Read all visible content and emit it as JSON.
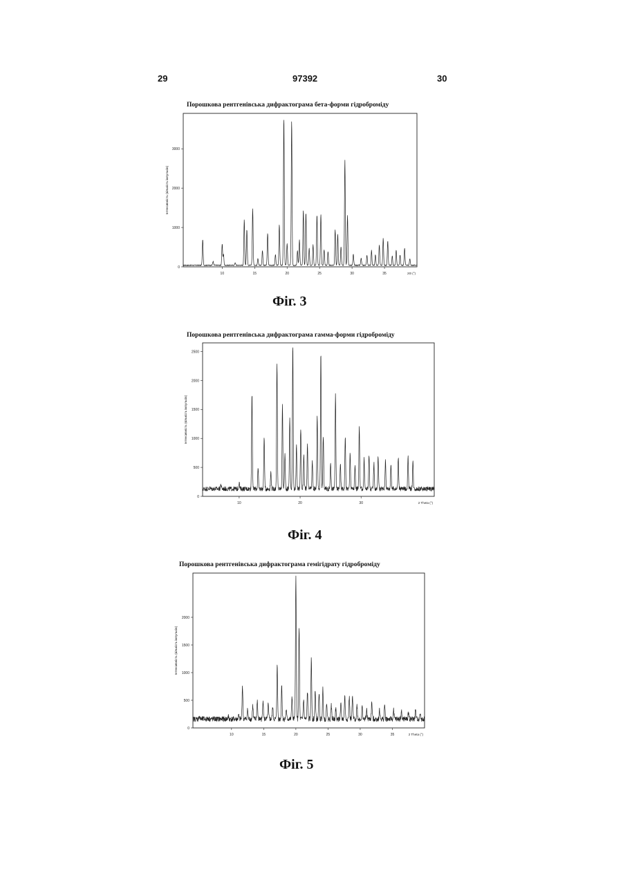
{
  "header": {
    "page_left": "29",
    "page_center": "97392",
    "page_right": "30"
  },
  "colors": {
    "ink": "#222222",
    "paper": "#ffffff"
  },
  "figures": [
    {
      "caption": "Фіг. 3",
      "chart_data": {
        "type": "line",
        "title": "Порошкова рентгенівська дифрактограма бета-форми гідроброміду",
        "ylabel": "Інтенсивність (кількість імпульсів)",
        "xlabel": "2Θ (°)",
        "xlim": [
          4,
          40
        ],
        "ylim": [
          0,
          3900
        ],
        "x_ticks": [
          10,
          15,
          20,
          25,
          30,
          35
        ],
        "y_ticks": [
          0,
          1000,
          2000,
          3000
        ],
        "grid": false,
        "baseline": 40,
        "peaks": [
          [
            7.0,
            700
          ],
          [
            8.6,
            140
          ],
          [
            10.0,
            580
          ],
          [
            10.2,
            320
          ],
          [
            12.0,
            110
          ],
          [
            13.4,
            1200
          ],
          [
            13.8,
            950
          ],
          [
            14.7,
            1480
          ],
          [
            15.5,
            220
          ],
          [
            16.2,
            420
          ],
          [
            17.0,
            860
          ],
          [
            18.2,
            320
          ],
          [
            18.8,
            1080
          ],
          [
            19.5,
            3800
          ],
          [
            20.0,
            600
          ],
          [
            20.7,
            3730
          ],
          [
            21.6,
            420
          ],
          [
            21.9,
            680
          ],
          [
            22.5,
            1450
          ],
          [
            22.9,
            1380
          ],
          [
            23.4,
            470
          ],
          [
            24.0,
            560
          ],
          [
            24.6,
            1320
          ],
          [
            25.2,
            1340
          ],
          [
            25.7,
            440
          ],
          [
            26.3,
            380
          ],
          [
            27.4,
            950
          ],
          [
            27.8,
            820
          ],
          [
            28.3,
            520
          ],
          [
            28.9,
            2720
          ],
          [
            29.3,
            1300
          ],
          [
            30.2,
            320
          ],
          [
            31.4,
            220
          ],
          [
            32.3,
            300
          ],
          [
            33.0,
            420
          ],
          [
            33.6,
            300
          ],
          [
            34.2,
            560
          ],
          [
            34.8,
            720
          ],
          [
            35.5,
            660
          ],
          [
            36.2,
            280
          ],
          [
            36.8,
            420
          ],
          [
            37.4,
            300
          ],
          [
            38.1,
            480
          ],
          [
            38.9,
            210
          ]
        ]
      }
    },
    {
      "caption": "Фіг. 4",
      "chart_data": {
        "type": "line",
        "title": "Порошкова рентгенівська дифрактограма гамма-форми гідроброміду",
        "ylabel": "Інтенсивність (кількість імпульсів)",
        "xlabel": "2 Theta (°)",
        "xlim": [
          4,
          42
        ],
        "ylim": [
          0,
          2650
        ],
        "x_ticks": [
          10,
          20,
          30
        ],
        "y_ticks": [
          0,
          500,
          1000,
          1500,
          2000,
          2500
        ],
        "grid": false,
        "baseline": 130,
        "peaks": [
          [
            5.2,
            140
          ],
          [
            7.0,
            210
          ],
          [
            8.1,
            130
          ],
          [
            10.0,
            240
          ],
          [
            12.1,
            1800
          ],
          [
            13.1,
            480
          ],
          [
            14.1,
            1050
          ],
          [
            15.2,
            420
          ],
          [
            16.2,
            2320
          ],
          [
            17.1,
            1580
          ],
          [
            17.5,
            740
          ],
          [
            18.3,
            1380
          ],
          [
            18.8,
            2620
          ],
          [
            19.4,
            860
          ],
          [
            20.1,
            1180
          ],
          [
            20.6,
            720
          ],
          [
            21.2,
            880
          ],
          [
            22.0,
            600
          ],
          [
            22.8,
            1420
          ],
          [
            23.4,
            2490
          ],
          [
            23.8,
            1060
          ],
          [
            25.0,
            600
          ],
          [
            25.8,
            1740
          ],
          [
            26.6,
            560
          ],
          [
            27.4,
            1040
          ],
          [
            28.2,
            760
          ],
          [
            29.0,
            520
          ],
          [
            29.7,
            1230
          ],
          [
            30.5,
            640
          ],
          [
            31.3,
            740
          ],
          [
            32.1,
            580
          ],
          [
            32.8,
            700
          ],
          [
            34.0,
            640
          ],
          [
            34.9,
            560
          ],
          [
            36.1,
            680
          ],
          [
            37.7,
            700
          ],
          [
            38.5,
            610
          ]
        ]
      }
    },
    {
      "caption": "Фіг. 5",
      "chart_data": {
        "type": "line",
        "title": "Порошкова рентгенівська дифрактограма гемігідрату гідроброміду",
        "ylabel": "Інтенсивність (кількість імпульсів)",
        "xlabel": "2 Theta (°)",
        "xlim": [
          4,
          40
        ],
        "ylim": [
          0,
          2800
        ],
        "x_ticks": [
          10,
          15,
          20,
          25,
          30,
          35
        ],
        "y_ticks": [
          0,
          500,
          1000,
          1500,
          2000
        ],
        "grid": false,
        "baseline": 160,
        "peaks": [
          [
            5.0,
            220
          ],
          [
            6.4,
            180
          ],
          [
            9.5,
            210
          ],
          [
            11.1,
            220
          ],
          [
            11.7,
            760
          ],
          [
            12.5,
            330
          ],
          [
            13.3,
            400
          ],
          [
            14.0,
            500
          ],
          [
            14.9,
            520
          ],
          [
            15.7,
            420
          ],
          [
            16.4,
            380
          ],
          [
            17.1,
            1120
          ],
          [
            17.8,
            780
          ],
          [
            18.5,
            320
          ],
          [
            19.4,
            580
          ],
          [
            20.0,
            2720
          ],
          [
            20.5,
            1820
          ],
          [
            21.2,
            520
          ],
          [
            21.8,
            660
          ],
          [
            22.4,
            1240
          ],
          [
            23.0,
            680
          ],
          [
            23.6,
            640
          ],
          [
            24.2,
            720
          ],
          [
            24.8,
            460
          ],
          [
            25.5,
            420
          ],
          [
            26.2,
            340
          ],
          [
            27.0,
            420
          ],
          [
            27.6,
            580
          ],
          [
            28.3,
            560
          ],
          [
            28.8,
            560
          ],
          [
            29.5,
            420
          ],
          [
            30.3,
            380
          ],
          [
            31.0,
            320
          ],
          [
            31.8,
            460
          ],
          [
            33.0,
            320
          ],
          [
            33.8,
            420
          ],
          [
            35.2,
            320
          ],
          [
            36.4,
            300
          ],
          [
            37.5,
            280
          ],
          [
            38.6,
            320
          ],
          [
            39.3,
            260
          ]
        ]
      }
    }
  ]
}
